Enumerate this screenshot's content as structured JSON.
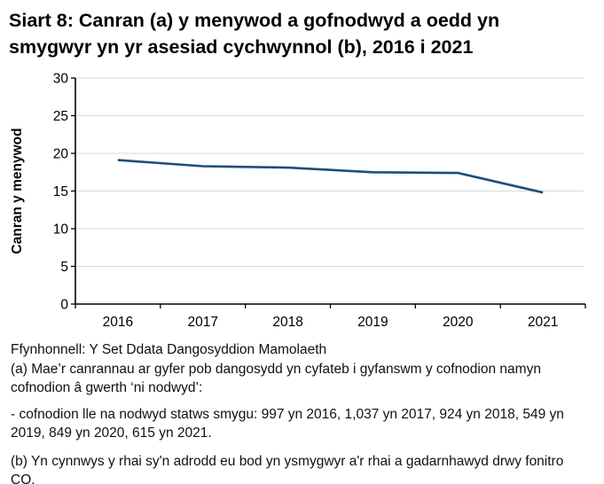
{
  "title": "Siart 8: Canran (a) y menywod a gofnodwyd a oedd yn smygwyr yn yr asesiad cychwynnol (b), 2016 i 2021",
  "chart_data": {
    "type": "line",
    "categories": [
      "2016",
      "2017",
      "2018",
      "2019",
      "2020",
      "2021"
    ],
    "series": [
      {
        "name": "Canran y menywod",
        "values": [
          19.1,
          18.3,
          18.1,
          17.5,
          17.4,
          14.8
        ]
      }
    ],
    "title": "Siart 8: Canran (a) y menywod a gofnodwyd a oedd yn smygwyr yn yr asesiad cychwynnol (b), 2016 i 2021",
    "xlabel": "",
    "ylabel": "Canran y menywod",
    "ylim": [
      0,
      30
    ],
    "yticks": [
      0,
      5,
      10,
      15,
      20,
      25,
      30
    ],
    "grid": "horizontal",
    "legend": "none",
    "line_color": "#1F4E79",
    "grid_color": "#D9D9D9",
    "axis_color": "#000000"
  },
  "footnotes": {
    "source": "Ffynhonnell: Y Set Ddata Dangosyddion Mamolaeth",
    "note_a_line1": "(a) Mae’r canrannau ar gyfer pob dangosydd yn cyfateb i gyfanswm y cofnodion namyn",
    "note_a_line2": "cofnodion â gwerth ‘ni nodwyd’:",
    "note_a_detail_line1": "- cofnodion lle na nodwyd statws smygu: 997 yn 2016, 1,037 yn 2017, 924 yn 2018, 549 yn",
    "note_a_detail_line2": "2019, 849 yn 2020, 615 yn 2021.",
    "note_b": "(b) Yn cynnwys y rhai sy'n adrodd eu bod yn ysmygwyr a'r rhai a gadarnhawyd drwy fonitro CO."
  }
}
